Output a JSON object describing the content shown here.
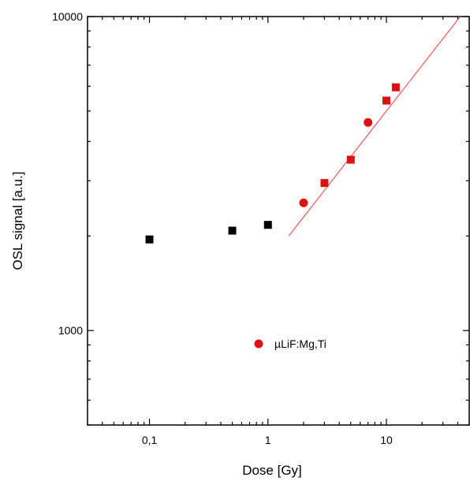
{
  "chart_data": {
    "type": "scatter",
    "xlabel": "Dose [Gy]",
    "ylabel": "OSL signal [a.u.]",
    "x_scale": "log",
    "y_scale": "log",
    "xlim": [
      0.03,
      50
    ],
    "ylim": [
      500,
      10000
    ],
    "x_ticks": [
      {
        "value": 0.1,
        "label": "0,1"
      },
      {
        "value": 1,
        "label": "1"
      },
      {
        "value": 10,
        "label": "10"
      }
    ],
    "y_ticks": [
      {
        "value": 1000,
        "label": "1000"
      },
      {
        "value": 10000,
        "label": "10000"
      }
    ],
    "series": [
      {
        "marker": "square",
        "color": "#000000",
        "x": [
          0.1,
          0.5,
          1
        ],
        "y": [
          1950,
          2080,
          2170
        ]
      },
      {
        "name": "µLiF:Mg,Ti",
        "marker": "circle",
        "color": "#dd1111",
        "x": [
          2,
          7
        ],
        "y": [
          2550,
          4600
        ]
      },
      {
        "marker": "square",
        "color": "#dd1111",
        "x": [
          3,
          5,
          10,
          12
        ],
        "y": [
          2950,
          3500,
          5400,
          5950
        ]
      }
    ],
    "fit_line": {
      "color": "#ee5555",
      "x": [
        1.5,
        42
      ],
      "y": [
        2000,
        10000
      ]
    },
    "legend": {
      "position": "bottom-center",
      "label": "µLiF:Mg,Ti"
    },
    "grid": false
  }
}
